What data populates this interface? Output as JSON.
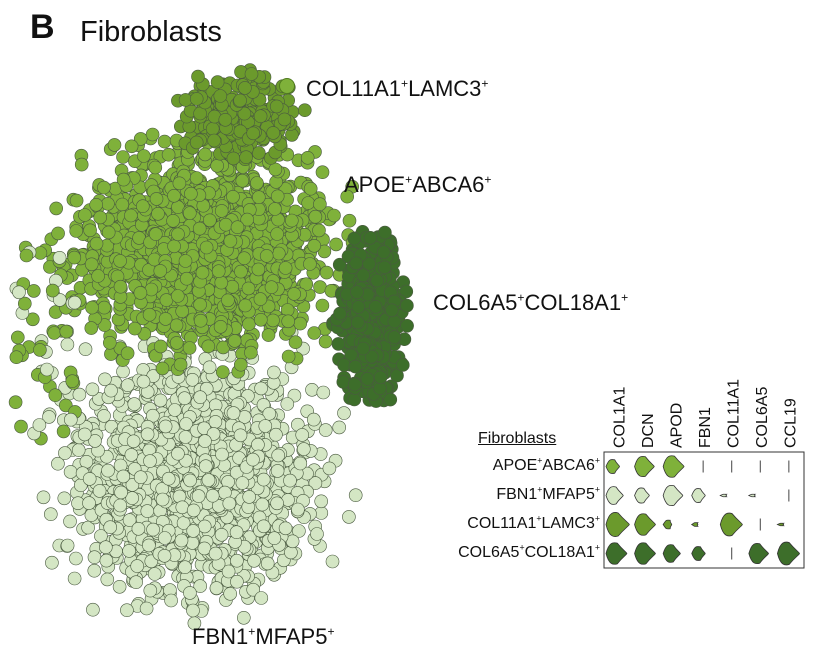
{
  "panel": {
    "letter": "B",
    "title": "Fibroblasts"
  },
  "colors": {
    "fbn1_mfap5": "#d4e6c4",
    "apoe_abca6": "#7fb13a",
    "col11a1_lamc3": "#6b9a2c",
    "col6a5_col18a1": "#3d6e2a",
    "outline": "#4a5a40"
  },
  "chart_data": [
    {
      "type": "scatter",
      "title": "Fibroblasts",
      "clusters": [
        {
          "base": "COL11A1",
          "base_sup": "+",
          "second": "LAMC3",
          "second_sup": "+",
          "color": "#6b9a2c"
        },
        {
          "base": "APOE",
          "base_sup": "+",
          "second": "ABCA6",
          "second_sup": "+",
          "color": "#7fb13a"
        },
        {
          "base": "COL6A5",
          "base_sup": "+",
          "second": "COL18A1",
          "second_sup": "+",
          "color": "#3d6e2a"
        },
        {
          "base": "FBN1",
          "base_sup": "+",
          "second": "MFAP5",
          "second_sup": "+",
          "color": "#d4e6c4"
        }
      ],
      "grid": false
    },
    {
      "type": "violin",
      "title": "Fibroblasts",
      "genes": [
        "COL1A1",
        "DCN",
        "APOD",
        "FBN1",
        "COL11A1",
        "COL6A5",
        "CCL19"
      ],
      "rows": [
        {
          "base": "APOE",
          "second": "ABCA6",
          "color": "#7fb13a",
          "values": [
            0.55,
            0.8,
            0.85,
            0.05,
            0.05,
            0.05,
            0.05
          ]
        },
        {
          "base": "FBN1",
          "second": "MFAP5",
          "color": "#d4e6c4",
          "values": [
            0.7,
            0.6,
            0.8,
            0.55,
            0.1,
            0.1,
            0.05
          ]
        },
        {
          "base": "COL11A1",
          "second": "LAMC3",
          "color": "#6b9a2c",
          "values": [
            0.95,
            0.85,
            0.35,
            0.15,
            0.9,
            0.05,
            0.1
          ]
        },
        {
          "base": "COL6A5",
          "second": "COL18A1",
          "color": "#3d6e2a",
          "values": [
            0.85,
            0.85,
            0.7,
            0.55,
            0.05,
            0.8,
            0.9
          ]
        }
      ]
    }
  ]
}
